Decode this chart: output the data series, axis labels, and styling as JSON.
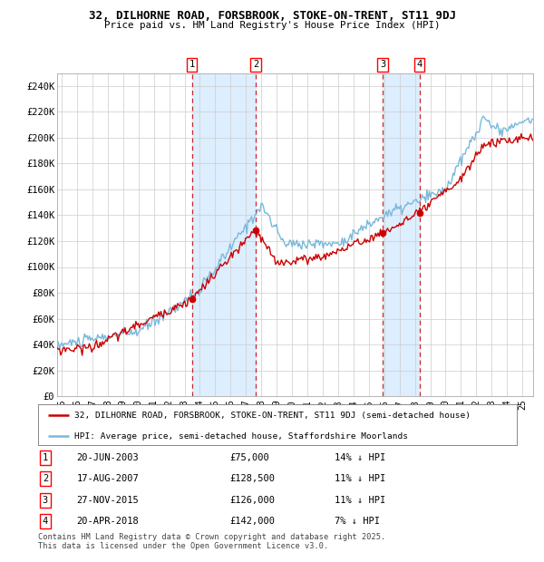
{
  "title": "32, DILHORNE ROAD, FORSBROOK, STOKE-ON-TRENT, ST11 9DJ",
  "subtitle": "Price paid vs. HM Land Registry's House Price Index (HPI)",
  "hpi_color": "#7ab8d9",
  "price_color": "#cc0000",
  "marker_color": "#cc0000",
  "bg_color": "#ffffff",
  "grid_color": "#cccccc",
  "shade_color": "#ddeeff",
  "ylim": [
    0,
    250000
  ],
  "yticks": [
    0,
    20000,
    40000,
    60000,
    80000,
    100000,
    120000,
    140000,
    160000,
    180000,
    200000,
    220000,
    240000
  ],
  "ytick_labels": [
    "£0",
    "£20K",
    "£40K",
    "£60K",
    "£80K",
    "£100K",
    "£120K",
    "£140K",
    "£160K",
    "£180K",
    "£200K",
    "£220K",
    "£240K"
  ],
  "xlim_start": 1994.7,
  "xlim_end": 2025.7,
  "transactions": [
    {
      "num": 1,
      "date": "20-JUN-2003",
      "year": 2003.47,
      "price": 75000,
      "pct": "14%",
      "direction": "↓"
    },
    {
      "num": 2,
      "date": "17-AUG-2007",
      "year": 2007.63,
      "price": 128500,
      "pct": "11%",
      "direction": "↓"
    },
    {
      "num": 3,
      "date": "27-NOV-2015",
      "year": 2015.91,
      "price": 126000,
      "pct": "11%",
      "direction": "↓"
    },
    {
      "num": 4,
      "date": "20-APR-2018",
      "year": 2018.3,
      "price": 142000,
      "pct": "7%",
      "direction": "↓"
    }
  ],
  "legend_line1": "32, DILHORNE ROAD, FORSBROOK, STOKE-ON-TRENT, ST11 9DJ (semi-detached house)",
  "legend_line2": "HPI: Average price, semi-detached house, Staffordshire Moorlands",
  "footnote": "Contains HM Land Registry data © Crown copyright and database right 2025.\nThis data is licensed under the Open Government Licence v3.0.",
  "xtick_years": [
    1995,
    1996,
    1997,
    1998,
    1999,
    2000,
    2001,
    2002,
    2003,
    2004,
    2005,
    2006,
    2007,
    2008,
    2009,
    2010,
    2011,
    2012,
    2013,
    2014,
    2015,
    2016,
    2017,
    2018,
    2019,
    2020,
    2021,
    2022,
    2023,
    2024,
    2025
  ]
}
